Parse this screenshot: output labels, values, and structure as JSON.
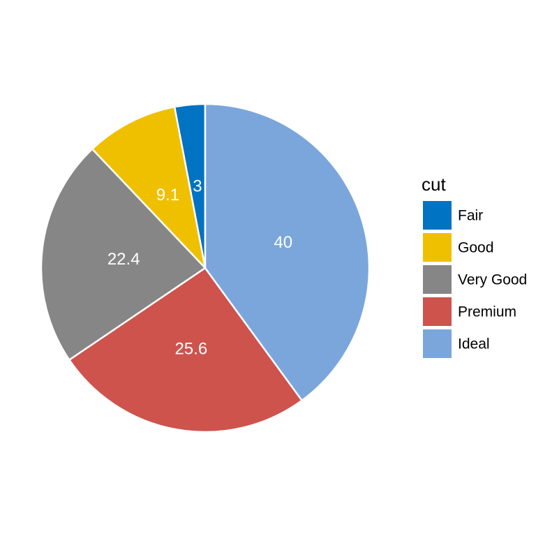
{
  "chart_data": {
    "type": "pie",
    "categories": [
      "Fair",
      "Good",
      "Very Good",
      "Premium",
      "Ideal"
    ],
    "values": [
      3,
      9.1,
      22.4,
      25.6,
      40
    ],
    "data_labels": [
      "3",
      "9.1",
      "22.4",
      "25.6",
      "40"
    ],
    "colors": [
      "#0073C2",
      "#EFC000",
      "#868686",
      "#CD534C",
      "#7AA6DC"
    ],
    "start": "12 o'clock",
    "direction": "counterclockwise",
    "legend": {
      "title": "cut",
      "placement": "right",
      "items": [
        "Fair",
        "Good",
        "Very Good",
        "Premium",
        "Ideal"
      ]
    }
  }
}
